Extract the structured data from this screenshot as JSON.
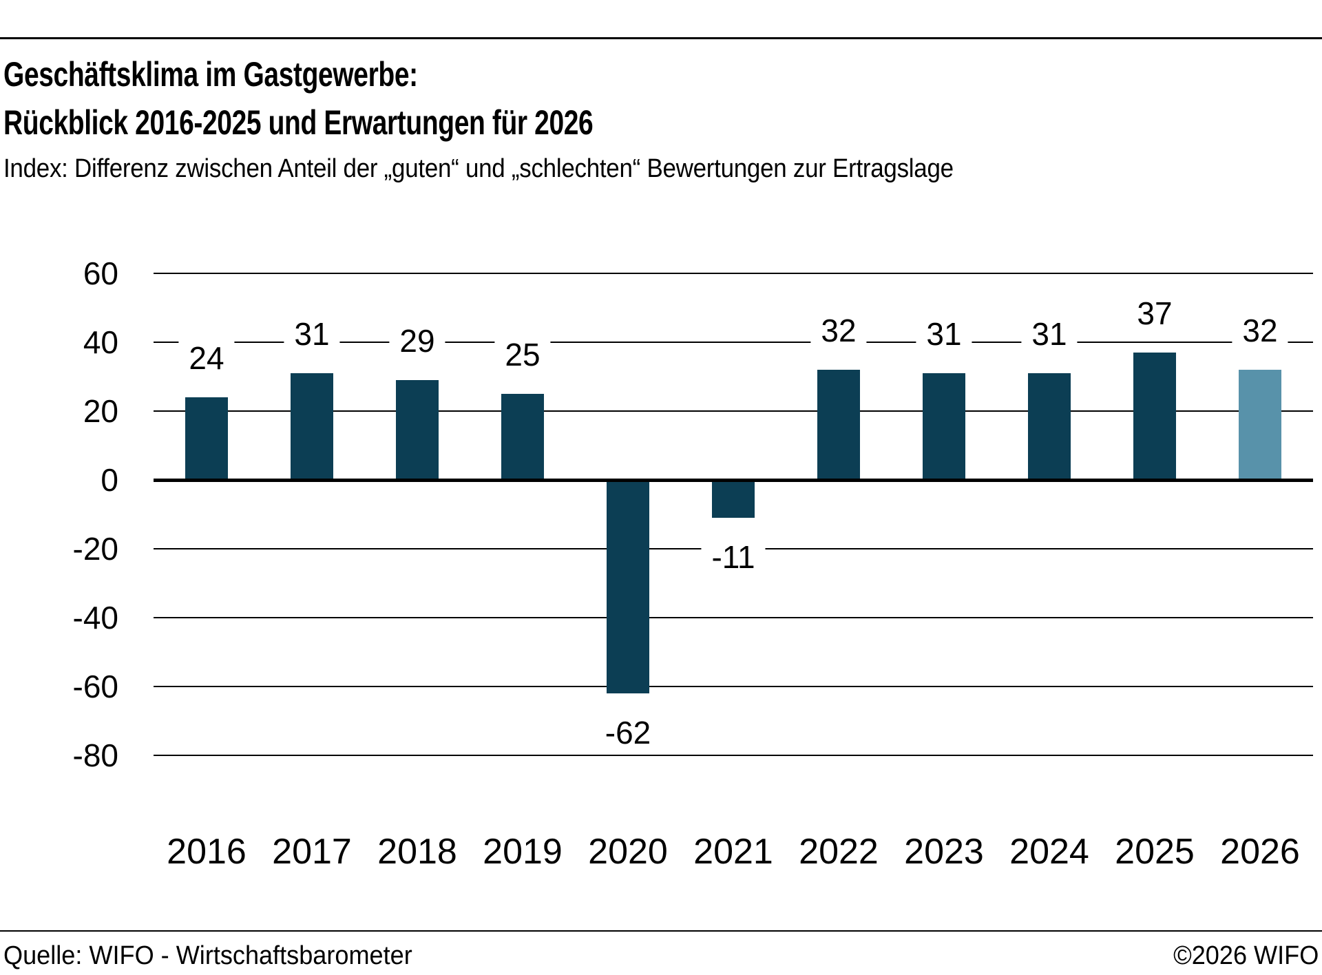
{
  "header": {
    "title_line1": "Geschäftsklima im Gastgewerbe:",
    "title_line2": "Rückblick 2016-2025 und Erwartungen für 2026",
    "subtitle": "Index: Differenz zwischen Anteil der „guten“ und „schlechten“ Bewertungen zur Ertragslage"
  },
  "footer": {
    "source": "Quelle: WIFO - Wirtschaftsbarometer",
    "copyright": "©2026 WIFO"
  },
  "chart_data": {
    "type": "bar",
    "title": "Geschäftsklima im Gastgewerbe: Rückblick 2016-2025 und Erwartungen für 2026",
    "subtitle": "Index: Differenz zwischen Anteil der „guten“ und „schlechten“ Bewertungen zur Ertragslage",
    "categories": [
      "2016",
      "2017",
      "2018",
      "2019",
      "2020",
      "2021",
      "2022",
      "2023",
      "2024",
      "2025",
      "2026"
    ],
    "values": [
      24,
      31,
      29,
      25,
      -62,
      -11,
      32,
      31,
      31,
      37,
      32
    ],
    "value_labels_shown": true,
    "ylim": [
      -80,
      60
    ],
    "ytick_step": 20,
    "ytick_labels": [
      "60",
      "40",
      "20",
      "0",
      "-20",
      "-40",
      "-60",
      "-80"
    ],
    "grid": true,
    "legend": "none",
    "bar_color": "#0c3e54",
    "forecast_bar_color": "#5892aa",
    "forecast_index": 10,
    "axis_color": "#000000",
    "background_color": "#ffffff"
  }
}
